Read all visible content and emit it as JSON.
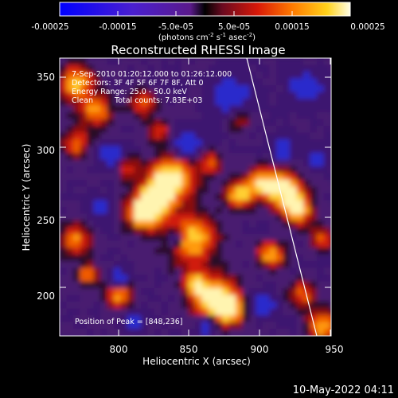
{
  "colorbar": {
    "tick_labels": [
      "-0.00025",
      "-0.00015",
      "-5.0e-05",
      "5.0e-05",
      "0.00015",
      "0.00025"
    ],
    "units_prefix": "(photons cm",
    "units_exp1": "-2",
    "units_mid": " s",
    "units_exp2": "-1",
    "units_suffix": " asec",
    "units_exp3": "-2",
    "units_close": ")"
  },
  "title": "Reconstructed RHESSI Image",
  "annotations": {
    "time_range": "7-Sep-2010 01:20:12.000 to 01:26:12.000",
    "detectors": "Detectors: 3F 4F 5F 6F 7F 8F, Att 0",
    "energy_range": "Energy Range: 25.0 - 50.0 keV",
    "algorithm": "Clean",
    "total_counts": "Total counts: 7.83E+03",
    "peak_position": "Position of Peak = [848,236]"
  },
  "axes": {
    "xlabel": "Heliocentric X (arcsec)",
    "ylabel": "Heliocentric Y (arcsec)",
    "x_ticks": [
      "800",
      "850",
      "900",
      "950"
    ],
    "y_ticks": [
      "350",
      "300",
      "250",
      "200"
    ],
    "x_range": [
      761,
      956
    ],
    "y_range": [
      170,
      365
    ]
  },
  "footer": {
    "date": "10-May-2022 04:11"
  },
  "colors": {
    "background": "#000000",
    "limb_line": "#ffffff",
    "negative": "#1a1aff",
    "positive_high": "#ffffcc"
  }
}
